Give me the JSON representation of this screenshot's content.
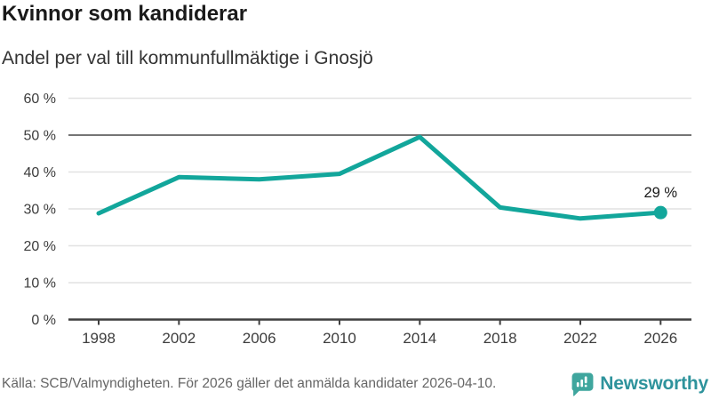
{
  "header": {
    "title": "Kvinnor som kandiderar",
    "subtitle": "Andel per val till kommunfullmäktige i Gnosjö"
  },
  "chart_data": {
    "type": "line",
    "title": "Kvinnor som kandiderar",
    "subtitle": "Andel per val till kommunfullmäktige i Gnosjö",
    "x": [
      "1998",
      "2002",
      "2006",
      "2010",
      "2014",
      "2018",
      "2022",
      "2026"
    ],
    "values": [
      28.8,
      38.6,
      38.0,
      39.5,
      49.5,
      30.4,
      27.4,
      29.0
    ],
    "ylim": [
      0,
      60
    ],
    "yticks": {
      "values": [
        0,
        10,
        20,
        30,
        40,
        50,
        60
      ],
      "labels": [
        "0 %",
        "10 %",
        "20 %",
        "30 %",
        "40 %",
        "50 %",
        "60 %"
      ]
    },
    "grid": true,
    "axis_gridline_value": 0,
    "emphasized_gridline_value": 50,
    "legend": "none",
    "last_point_label": "29 %",
    "xlabel": "",
    "ylabel": ""
  },
  "footer": {
    "source": "Källa: SCB/Valmyndigheten. För 2026 gäller det anmälda kandidater 2026-04-10.",
    "brand": "Newsworthy"
  },
  "colors": {
    "line": "#12a69b",
    "grid_light": "#e2e2e2",
    "grid_emphasis": "#757575",
    "axis": "#3f3f3f",
    "axis_text": "#3d3d3d",
    "point_label": "#1a1a1a",
    "logo_icon": "#3fa69e",
    "logo_text": "#2e939c"
  }
}
